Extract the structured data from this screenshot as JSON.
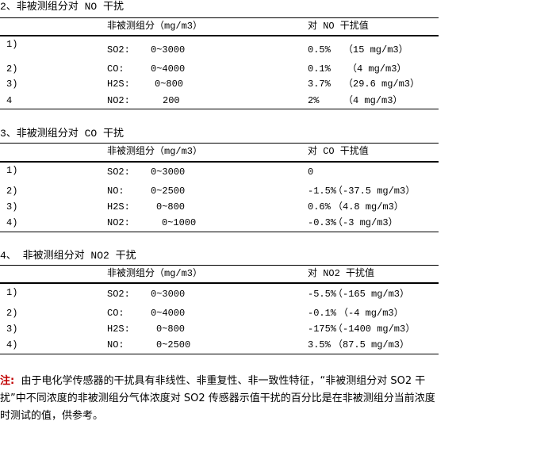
{
  "sections": [
    {
      "title": "2、非被测组分对 NO 干扰",
      "col1": "非被测组分（mg/m3）",
      "col2": "对 NO 干扰值",
      "rows": [
        {
          "idx": "1)",
          "gas": "SO2:",
          "range": "0~3000",
          "pct": "0.5%",
          "abs": "（15 mg/m3）"
        },
        {
          "idx": "2)",
          "gas": "CO:",
          "range": "0~4000",
          "pct": "0.1%",
          "abs": "（4 mg/m3）"
        },
        {
          "idx": "3)",
          "gas": "H2S:",
          "range": "0~800",
          "pct": "3.7%",
          "abs": "（29.6 mg/m3）"
        },
        {
          "idx": "4",
          "gas": "NO2:",
          "range": "200",
          "pct": "2%",
          "abs": "（4 mg/m3）"
        }
      ]
    },
    {
      "title": "3、非被测组分对 CO 干扰",
      "col1": "非被测组分（mg/m3）",
      "col2": "对 CO 干扰值",
      "rows": [
        {
          "idx": "1)",
          "gas": "SO2:",
          "range": "0~3000",
          "pct": "0",
          "abs": ""
        },
        {
          "idx": "2)",
          "gas": "NO:",
          "range": "0~2500",
          "pct": "-1.5%",
          "abs": "（-37.5 mg/m3）"
        },
        {
          "idx": "3)",
          "gas": "H2S:",
          "range": "0~800",
          "pct": "0.6%",
          "abs": "（4.8 mg/m3）"
        },
        {
          "idx": "4)",
          "gas": "NO2:",
          "range": "0~1000",
          "pct": "-0.3%",
          "abs": "（-3 mg/m3）"
        }
      ]
    },
    {
      "title": "4、  非被测组分对 NO2 干扰",
      "col1": "非被测组分（mg/m3）",
      "col2": "对 NO2 干扰值",
      "rows": [
        {
          "idx": "1)",
          "gas": "SO2:",
          "range": "0~3000",
          "pct": "-5.5%",
          "abs": "（-165 mg/m3）"
        },
        {
          "idx": "2)",
          "gas": "CO:",
          "range": "0~4000",
          "pct": "-0.1%",
          "abs": "（-4 mg/m3）"
        },
        {
          "idx": "3)",
          "gas": "H2S:",
          "range": "0~800",
          "pct": "-175%",
          "abs": "（-1400 mg/m3）"
        },
        {
          "idx": "4)",
          "gas": "NO:",
          "range": "0~2500",
          "pct": "3.5%",
          "abs": "（87.5 mg/m3）"
        }
      ]
    }
  ],
  "note": {
    "label": "注:",
    "text": "由于电化学传感器的干扰具有非线性、非重复性、非一致性特征，“非被测组分对 SO2 干扰”中不同浓度的非被测组分气体浓度对 SO2 传感器示值干扰的百分比是在非被测组分当前浓度时测试的值，供参考。"
  }
}
